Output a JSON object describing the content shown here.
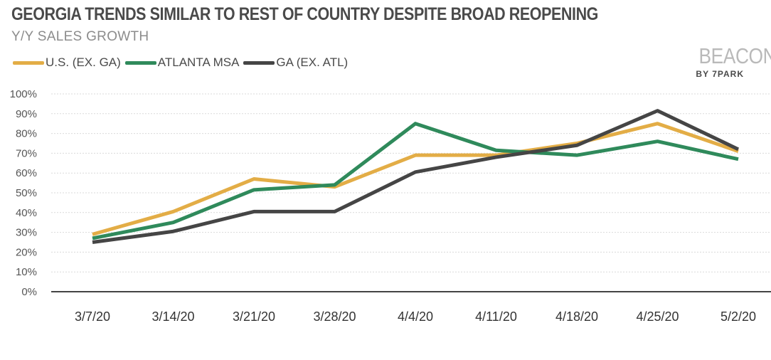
{
  "title": "GEORGIA TRENDS SIMILAR TO REST OF COUNTRY DESPITE BROAD REOPENING",
  "subtitle": "Y/Y SALES GROWTH",
  "logo": {
    "word": "BEACON",
    "sub": "BY 7PARK"
  },
  "chart_data": {
    "type": "line",
    "title": "GEORGIA TRENDS SIMILAR TO REST OF COUNTRY DESPITE BROAD REOPENING",
    "subtitle": "Y/Y SALES GROWTH",
    "categories": [
      "3/7/20",
      "3/14/20",
      "3/21/20",
      "3/28/20",
      "4/4/20",
      "4/11/20",
      "4/18/20",
      "4/25/20",
      "5/2/20"
    ],
    "y_ticks": [
      "0%",
      "10%",
      "20%",
      "30%",
      "40%",
      "50%",
      "60%",
      "70%",
      "80%",
      "90%",
      "100%"
    ],
    "ylim": [
      0,
      100
    ],
    "grid": true,
    "legend_position": "top-left",
    "series": [
      {
        "name": "U.S. (EX. GA)",
        "color": "#e3ad46",
        "values": [
          29,
          40.5,
          57,
          53,
          69,
          69,
          75,
          85,
          71
        ]
      },
      {
        "name": "ATLANTA MSA",
        "color": "#2f8a5b",
        "values": [
          27,
          35,
          51.5,
          54,
          85,
          71.5,
          69,
          76,
          67
        ]
      },
      {
        "name": "GA (EX. ATL)",
        "color": "#454545",
        "values": [
          25,
          30.5,
          40.5,
          40.5,
          60.5,
          68,
          74,
          91.5,
          72
        ]
      }
    ]
  }
}
